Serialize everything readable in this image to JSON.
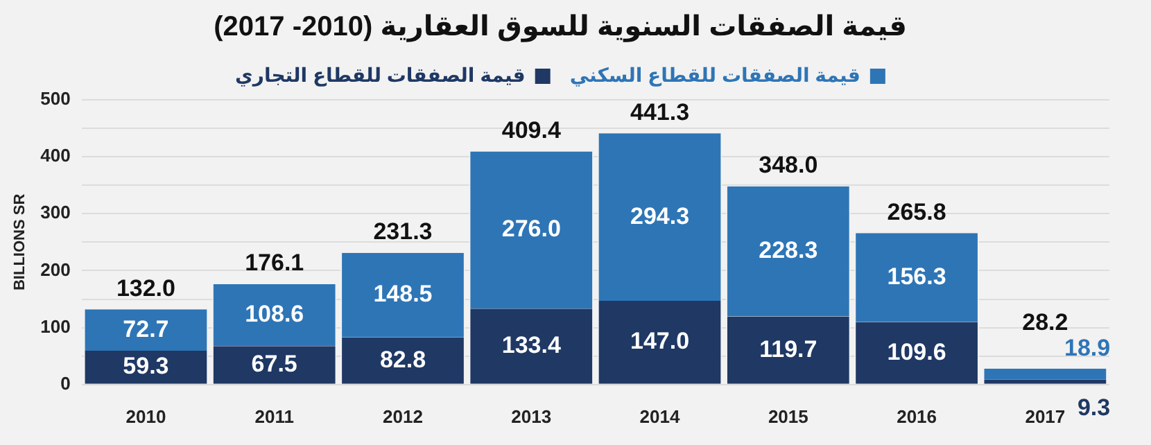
{
  "chart_data": {
    "type": "bar",
    "stacked": true,
    "title": "قيمة الصفقات السنوية للسوق العقارية (2010- 2017)",
    "ylabel": "BILLIONS SR",
    "categories": [
      "2010",
      "2011",
      "2012",
      "2013",
      "2014",
      "2015",
      "2016",
      "2017"
    ],
    "series": [
      {
        "name": "قيمة الصفقات للقطاع التجاري",
        "color": "#1f3864",
        "values": [
          59.3,
          67.5,
          82.8,
          133.4,
          147.0,
          119.7,
          109.6,
          9.3
        ],
        "value_labels": [
          "59.3",
          "67.5",
          "82.8",
          "133.4",
          "147.0",
          "119.7",
          "109.6",
          "9.3"
        ]
      },
      {
        "name": "قيمة الصفقات للقطاع السكني",
        "color": "#2e75b6",
        "values": [
          72.7,
          108.6,
          148.5,
          276.0,
          294.3,
          228.3,
          156.3,
          18.9
        ],
        "value_labels": [
          "72.7",
          "108.6",
          "148.5",
          "276.0",
          "294.3",
          "228.3",
          "156.3",
          "18.9"
        ]
      }
    ],
    "totals": [
      "132.0",
      "176.1",
      "231.3",
      "409.4",
      "441.3",
      "348.0",
      "265.8",
      "28.2"
    ],
    "ylim": [
      0,
      500
    ],
    "yticks": [
      0,
      {
        "value": 50,
        "label": null
      },
      100,
      {
        "value": 150,
        "label": null
      },
      200,
      {
        "value": 250,
        "label": null
      },
      300,
      {
        "value": 350,
        "label": null
      },
      400,
      {
        "value": 450,
        "label": null
      },
      500
    ],
    "grid": "y",
    "legend": "top"
  }
}
